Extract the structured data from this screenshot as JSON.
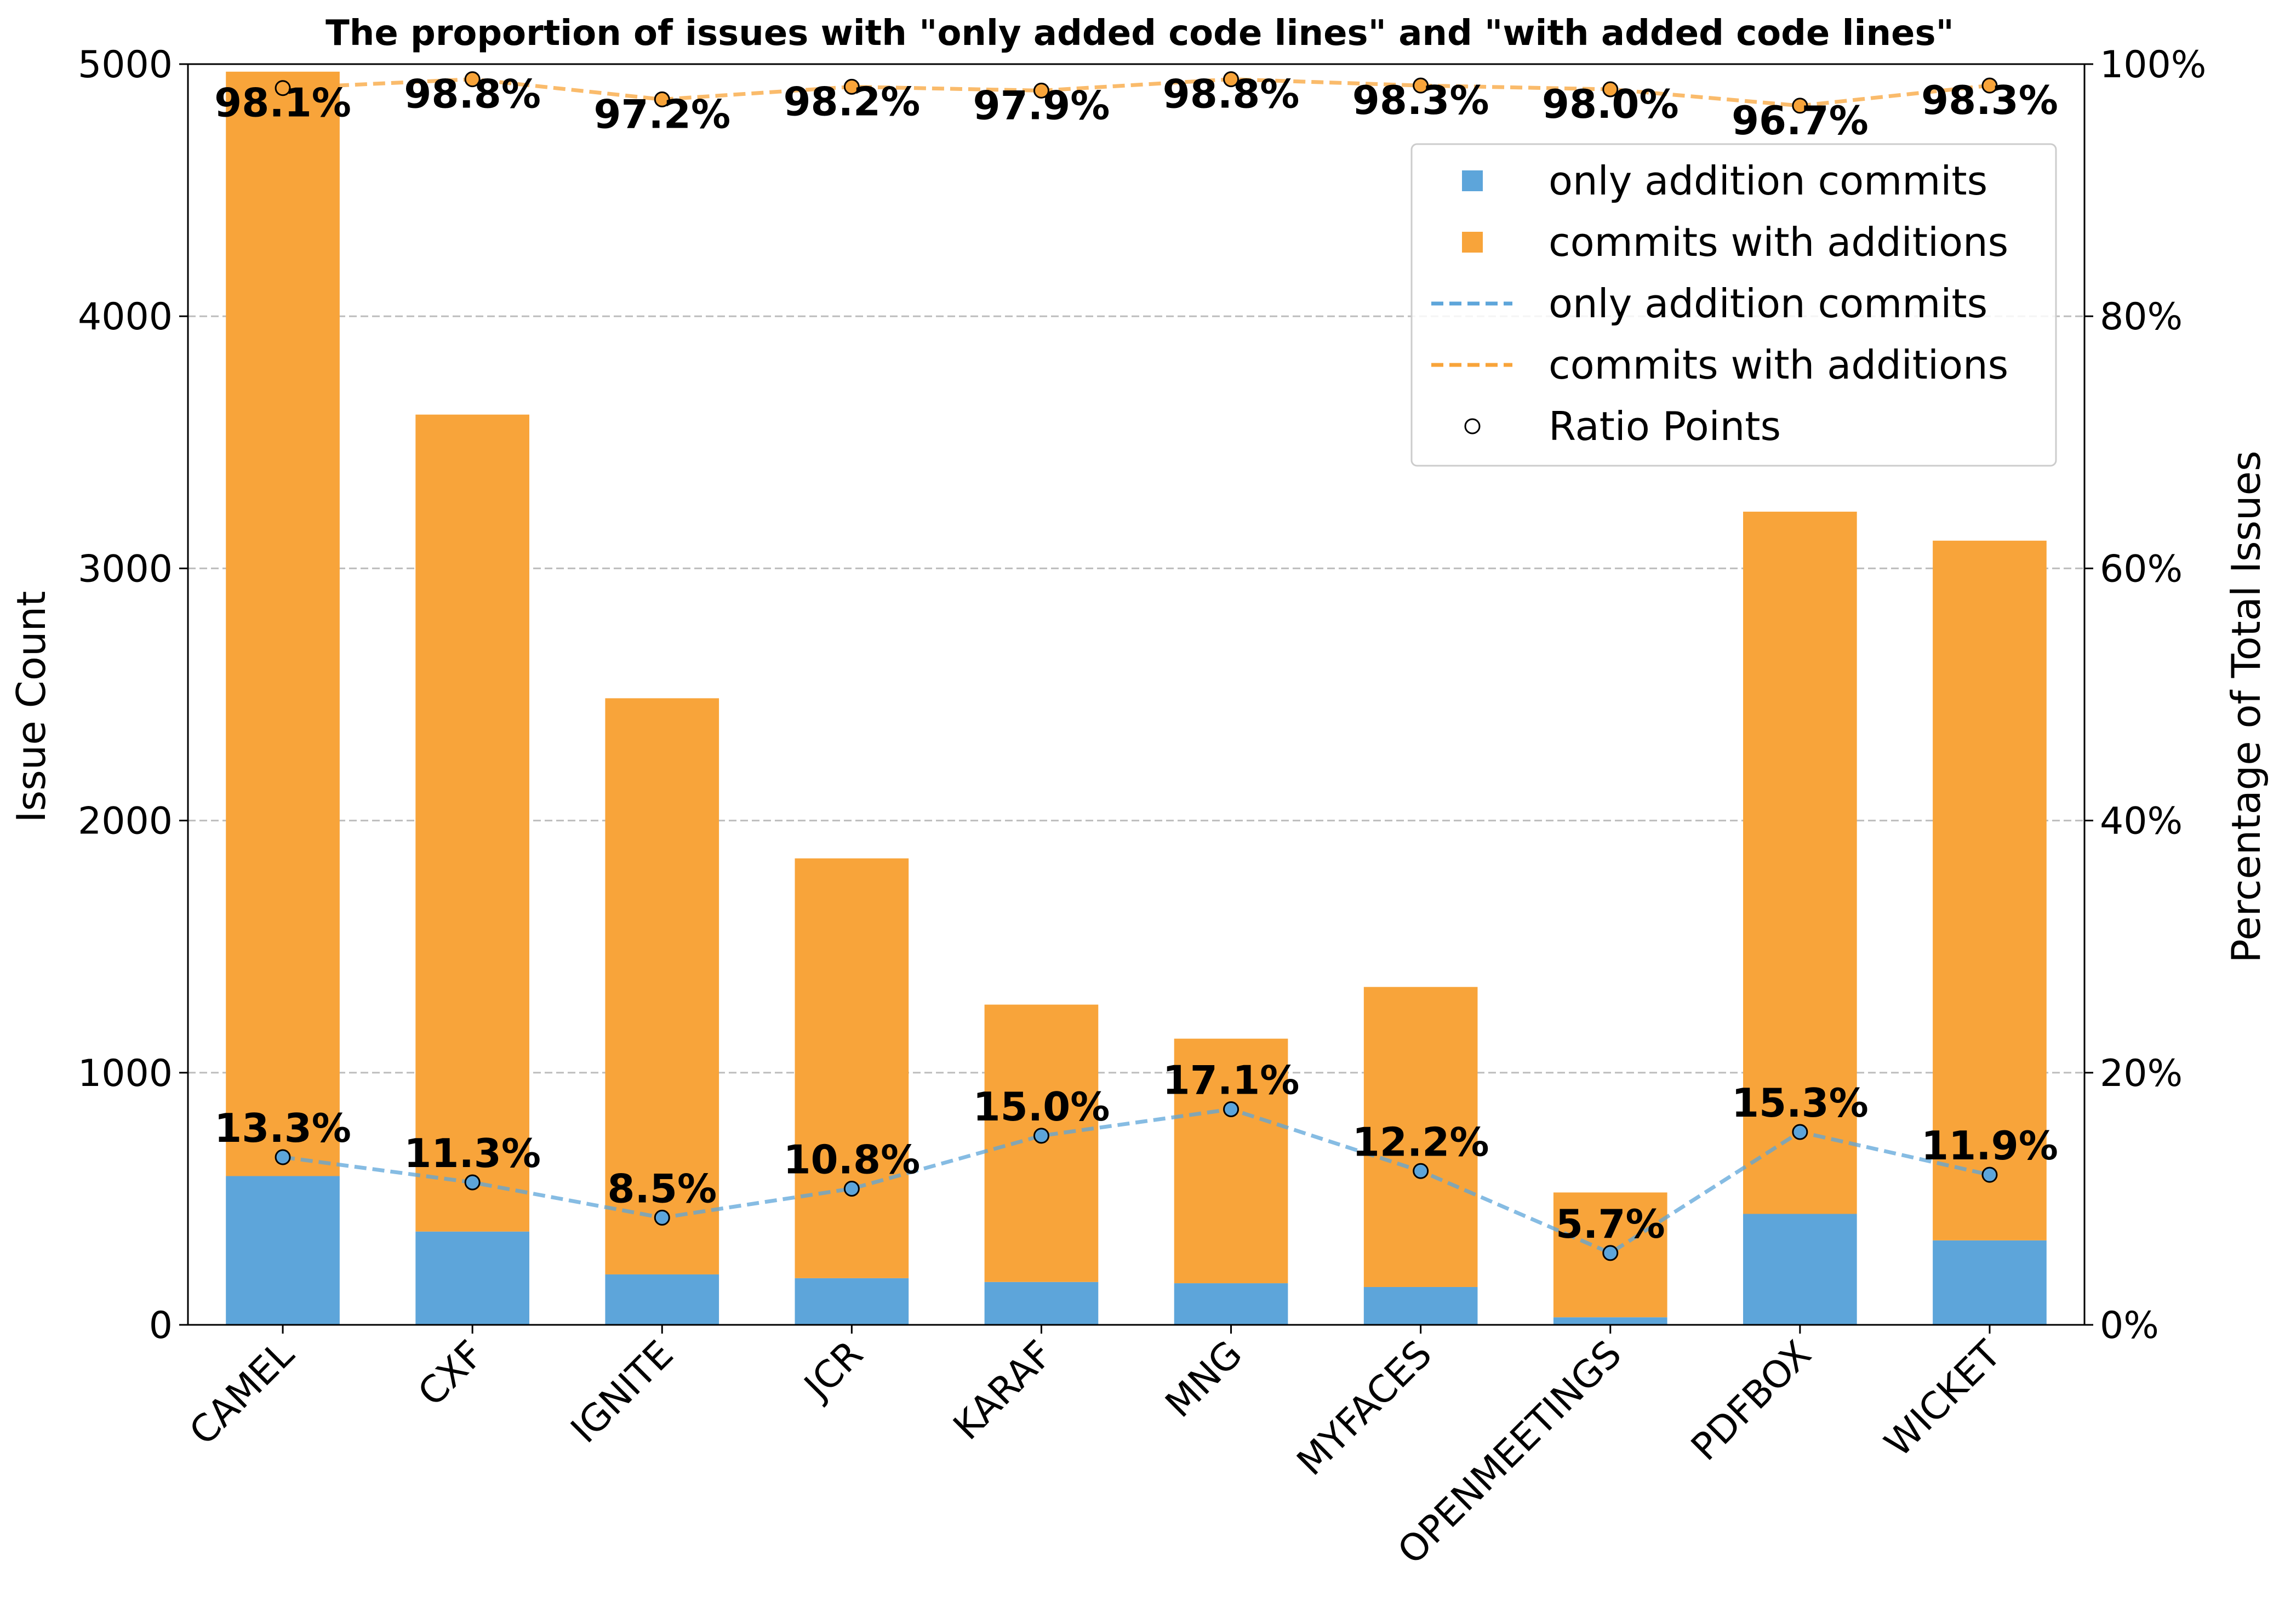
{
  "chart_data": {
    "type": "bar",
    "title": "The proportion of issues with \"only added code lines\" and \"with added code lines\"",
    "categories": [
      "CAMEL",
      "CXF",
      "IGNITE",
      "JCR",
      "KARAF",
      "MNG",
      "MYFACES",
      "OPENMEETINGS",
      "PDFBOX",
      "WICKET"
    ],
    "stacked": true,
    "series": [
      {
        "name": "only addition commits",
        "kind": "bar",
        "axis": "left",
        "color": "#5da5da",
        "values": [
          590,
          370,
          200,
          185,
          170,
          165,
          150,
          30,
          440,
          335
        ]
      },
      {
        "name": "commits with additions",
        "kind": "bar",
        "axis": "left",
        "color": "#f8a43a",
        "values": [
          4380,
          3240,
          2285,
          1665,
          1100,
          970,
          1190,
          495,
          2785,
          2775
        ]
      },
      {
        "name": "only addition commits",
        "kind": "line",
        "style": "dashed",
        "axis": "right",
        "color": "#5da5da",
        "values": [
          13.3,
          11.3,
          8.5,
          10.8,
          15.0,
          17.1,
          12.2,
          5.7,
          15.3,
          11.9
        ],
        "labels": [
          "13.3%",
          "11.3%",
          "8.5%",
          "10.8%",
          "15.0%",
          "17.1%",
          "12.2%",
          "5.7%",
          "15.3%",
          "11.9%"
        ]
      },
      {
        "name": "commits with additions",
        "kind": "line",
        "style": "dashed",
        "axis": "right",
        "color": "#f8a43a",
        "values": [
          98.1,
          98.8,
          97.2,
          98.2,
          97.9,
          98.8,
          98.3,
          98.0,
          96.7,
          98.3
        ],
        "labels": [
          "98.1%",
          "98.8%",
          "97.2%",
          "98.2%",
          "97.9%",
          "98.8%",
          "98.3%",
          "98.0%",
          "96.7%",
          "98.3%"
        ]
      }
    ],
    "ylabel": "Issue Count",
    "ylim": [
      0,
      5000
    ],
    "yticks": [
      "0",
      "1000",
      "2000",
      "3000",
      "4000",
      "5000"
    ],
    "y2label": "Percentage of Total Issues",
    "y2lim": [
      0,
      100
    ],
    "y2ticks": [
      "0%",
      "20%",
      "40%",
      "60%",
      "80%",
      "100%"
    ],
    "grid": "horizontal dashed",
    "legend": {
      "placement": "top-right",
      "entries": [
        "only addition commits",
        "commits with additions",
        "only addition commits",
        "commits with additions",
        "Ratio Points"
      ]
    }
  }
}
